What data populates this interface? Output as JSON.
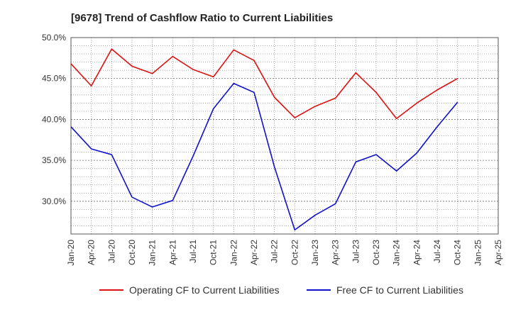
{
  "chart_data": {
    "type": "line",
    "title": "[9678]  Trend of Cashflow Ratio to Current Liabilities",
    "xlabel": "",
    "ylabel": "",
    "ylim": [
      26.0,
      50.0
    ],
    "y_ticks": [
      "30.0%",
      "35.0%",
      "40.0%",
      "45.0%",
      "50.0%"
    ],
    "y_tick_values": [
      30,
      35,
      40,
      45,
      50
    ],
    "x_ticks": [
      "Jan-20",
      "Apr-20",
      "Jul-20",
      "Oct-20",
      "Jan-21",
      "Apr-21",
      "Jul-21",
      "Oct-21",
      "Jan-22",
      "Apr-22",
      "Jul-22",
      "Oct-22",
      "Jan-23",
      "Apr-23",
      "Jul-23",
      "Oct-23",
      "Jan-24",
      "Apr-24",
      "Jul-24",
      "Oct-24",
      "Jan-25",
      "Apr-25"
    ],
    "grid": true,
    "legend_position": "bottom-center",
    "series": [
      {
        "name": "Operating CF to Current Liabilities",
        "color": "#dd1111",
        "values": [
          46.8,
          44.1,
          48.6,
          46.5,
          45.6,
          47.7,
          46.1,
          45.2,
          48.5,
          47.2,
          42.7,
          40.2,
          41.6,
          42.6,
          45.7,
          43.3,
          40.1,
          42.0,
          43.6,
          45.0
        ]
      },
      {
        "name": "Free CF to Current Liabilities",
        "color": "#1111cc",
        "values": [
          39.1,
          36.4,
          35.7,
          30.5,
          29.3,
          30.1,
          35.5,
          41.3,
          44.4,
          43.3,
          34.2,
          26.5,
          28.3,
          29.7,
          34.8,
          35.7,
          33.7,
          35.9,
          39.1,
          42.1
        ]
      }
    ]
  }
}
